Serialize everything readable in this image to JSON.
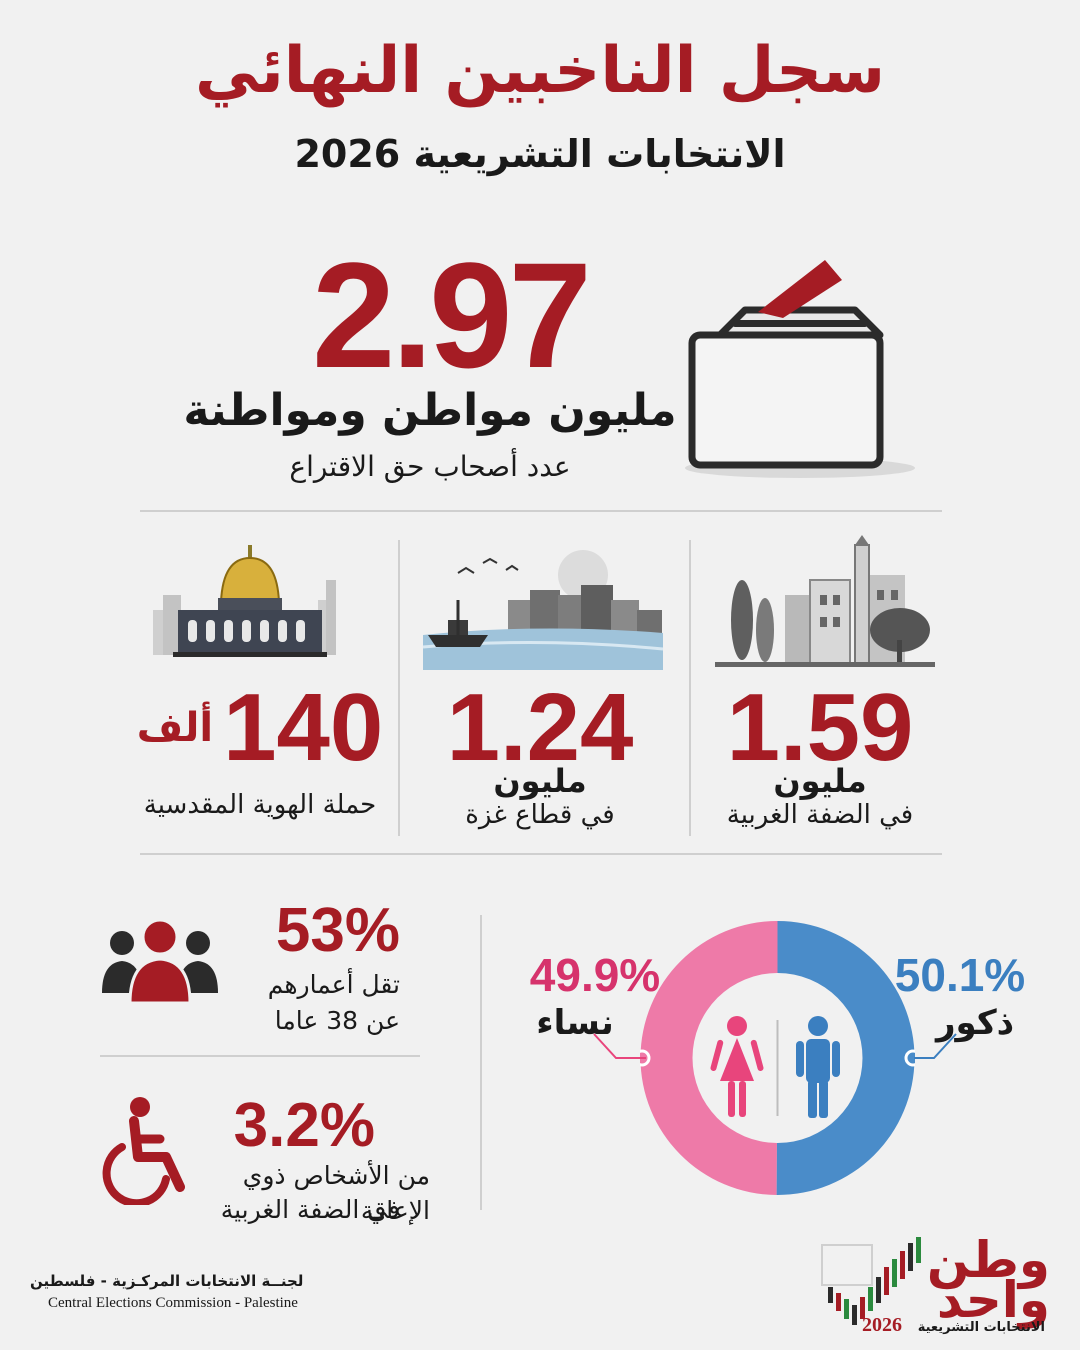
{
  "header": {
    "title": "سجل الناخبين النهائي",
    "subtitle": "الانتخابات التشريعية 2026"
  },
  "total": {
    "value": "2.97",
    "unit": "مليون مواطن ومواطنة",
    "description": "عدد أصحاب حق الاقتراع"
  },
  "regions": [
    {
      "value": "1.59",
      "unit": "مليون",
      "description": "في الضفة الغربية",
      "icon": "west-bank-town-icon"
    },
    {
      "value": "1.24",
      "unit": "مليون",
      "description": "في قطاع غزة",
      "icon": "gaza-coast-icon"
    },
    {
      "value": "140",
      "unit": "ألف",
      "description": "حملة الهوية المقدسية",
      "icon": "dome-of-rock-icon"
    }
  ],
  "age": {
    "value": "53%",
    "text_line1": "تقل أعمارهم",
    "text_line2": "عن 38 عاما"
  },
  "disability": {
    "value": "3.2%",
    "text_line1": "من الأشخاص ذوي الإعاقة",
    "text_line2": "في الضفة الغربية"
  },
  "gender": {
    "male": {
      "value": "50.1%",
      "label": "ذكور",
      "share": 50.1,
      "color": "#4a8cc9"
    },
    "female": {
      "value": "49.9%",
      "label": "نساء",
      "share": 49.9,
      "color": "#ee7aa8"
    }
  },
  "footer": {
    "org_ar": "لجنــة الانتخابات المركـزية - فلسطين",
    "org_en": "Central Elections Commission - Palestine"
  },
  "logo": {
    "line1": "وطن",
    "line2": "واحد",
    "sub": "الانتخابات التشريعية",
    "year": "2026"
  },
  "colors": {
    "accent": "#a51c24",
    "background": "#f1f1f1",
    "male": "#4a8cc9",
    "female": "#ee7aa8"
  }
}
